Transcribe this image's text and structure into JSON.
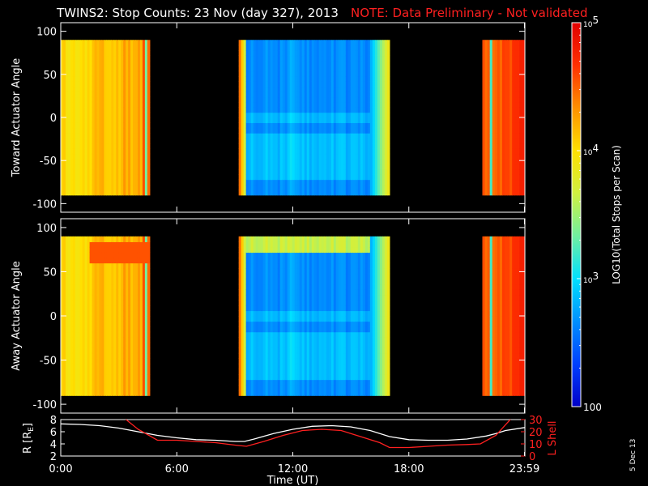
{
  "title": "TWINS2: Stop Counts: 23 Nov (day 327), 2013",
  "note": "NOTE: Data Preliminary - Not validated",
  "date_stamp": "5 Dec 13",
  "colors": {
    "background": "#000000",
    "frame": "#ffffff",
    "note": "#ff2020",
    "lshell": "#ff2020",
    "radius": "#ffffff",
    "colormap": [
      "#0000c8",
      "#0040ff",
      "#0090ff",
      "#00e0ff",
      "#70f0a0",
      "#d0f040",
      "#ffe000",
      "#ff9000",
      "#ff3000",
      "#e00000"
    ]
  },
  "colorbar": {
    "label": "LOG10(Total Stops per Scan)",
    "ticks": [
      {
        "value": 100,
        "label": "100"
      },
      {
        "value": 1000,
        "label": "10^3"
      },
      {
        "value": 10000,
        "label": "10^4"
      },
      {
        "value": 100000,
        "label": "10^5"
      }
    ],
    "range": [
      100,
      100000
    ],
    "scale": "log"
  },
  "chart_data": [
    {
      "type": "heatmap",
      "ylabel": "Toward Actuator Angle",
      "ylim": [
        -110,
        110
      ],
      "yticks": [
        -100,
        -50,
        0,
        50,
        100
      ],
      "xlim": [
        0,
        24
      ],
      "data_y_range": [
        -90,
        90
      ],
      "data_intervals": [
        {
          "start": 0.0,
          "end": 4.6
        },
        {
          "start": 9.2,
          "end": 17.0
        },
        {
          "start": 21.8,
          "end": 23.98
        }
      ]
    },
    {
      "type": "heatmap",
      "ylabel": "Away Actuator Angle",
      "ylim": [
        -110,
        110
      ],
      "yticks": [
        -100,
        -50,
        0,
        50,
        100
      ],
      "xlim": [
        0,
        24
      ],
      "data_y_range": [
        -90,
        90
      ],
      "data_intervals": [
        {
          "start": 0.0,
          "end": 4.6
        },
        {
          "start": 9.2,
          "end": 17.0
        },
        {
          "start": 21.8,
          "end": 23.98
        }
      ]
    },
    {
      "type": "line",
      "xlabel": "Time (UT)",
      "xlim": [
        0,
        24
      ],
      "xticks": [
        {
          "value": 0,
          "label": "0:00"
        },
        {
          "value": 6,
          "label": "6:00"
        },
        {
          "value": 12,
          "label": "12:00"
        },
        {
          "value": 18,
          "label": "18:00"
        },
        {
          "value": 23.98,
          "label": "23:59"
        }
      ],
      "ylabel_left": "R [RE]",
      "ylim_left": [
        2,
        8
      ],
      "yticks_left": [
        2,
        4,
        6,
        8
      ],
      "ylabel_right": "L Shell",
      "ylim_right": [
        0,
        30
      ],
      "yticks_right": [
        0,
        10,
        20,
        30
      ],
      "series": [
        {
          "axis": "left",
          "x": [
            0,
            1,
            2,
            3,
            4,
            5,
            6,
            7,
            8,
            9,
            9.5,
            10,
            11,
            12,
            13,
            14,
            15,
            16,
            17,
            18,
            19,
            20,
            21,
            22,
            22.5,
            23,
            24
          ],
          "y": [
            7.3,
            7.2,
            7.0,
            6.6,
            6.0,
            5.4,
            5.0,
            4.7,
            4.6,
            4.4,
            4.4,
            4.8,
            5.7,
            6.4,
            6.9,
            7.0,
            6.8,
            6.2,
            5.2,
            4.7,
            4.6,
            4.6,
            4.8,
            5.3,
            5.7,
            6.2,
            6.7
          ]
        },
        {
          "axis": "right",
          "x": [
            3.3,
            4.0,
            5.0,
            6.0,
            7.0,
            8.0,
            9.0,
            9.6,
            10.5,
            11.5,
            12.5,
            13.5,
            14.5,
            15.5,
            16.5,
            17.0,
            18.0,
            19.0,
            20.0,
            21.0,
            21.7,
            22.5,
            23.3
          ],
          "y": [
            31,
            22,
            13,
            13,
            12,
            11,
            9,
            8,
            12,
            17,
            21,
            22,
            21,
            16,
            11,
            7,
            7,
            8,
            9,
            9.5,
            10,
            17,
            31
          ]
        }
      ]
    }
  ]
}
